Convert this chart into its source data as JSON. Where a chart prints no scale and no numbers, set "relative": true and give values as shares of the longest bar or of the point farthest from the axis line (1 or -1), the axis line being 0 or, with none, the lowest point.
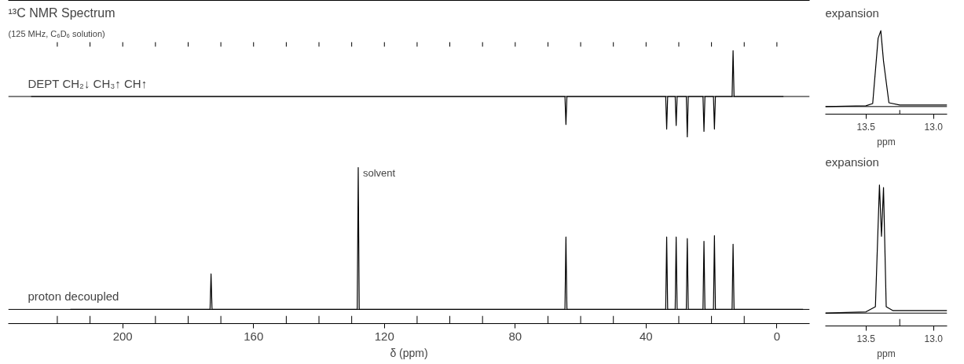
{
  "chart_data": [
    {
      "type": "line",
      "title": "¹³C NMR Spectrum",
      "subtitle": "(125 MHz, C₆D₆ solution)",
      "relative": true,
      "tick_labels": false,
      "annotations": [
        "DEPT  CH₂↓ CH₃↑ CH↑"
      ],
      "xlim": [
        235,
        -10
      ],
      "xticks": [
        {
          "value": 220,
          "label": null
        },
        {
          "value": 210,
          "label": null
        },
        {
          "value": 200,
          "label": null
        },
        {
          "value": 190,
          "label": null
        },
        {
          "value": 180,
          "label": null
        },
        {
          "value": 170,
          "label": null
        },
        {
          "value": 160,
          "label": null
        },
        {
          "value": 150,
          "label": null
        },
        {
          "value": 140,
          "label": null
        },
        {
          "value": 130,
          "label": null
        },
        {
          "value": 120,
          "label": null
        },
        {
          "value": 110,
          "label": null
        },
        {
          "value": 100,
          "label": null
        },
        {
          "value": 90,
          "label": null
        },
        {
          "value": 80,
          "label": null
        },
        {
          "value": 70,
          "label": null
        },
        {
          "value": 60,
          "label": null
        },
        {
          "value": 50,
          "label": null
        },
        {
          "value": 40,
          "label": null
        },
        {
          "value": 30,
          "label": null
        },
        {
          "value": 20,
          "label": null
        },
        {
          "value": 10,
          "label": null
        },
        {
          "value": 0,
          "label": null
        }
      ],
      "series": [
        {
          "color": "#000000",
          "x": [
            228,
            64.8,
            64.5,
            64.2,
            34.0,
            33.7,
            33.4,
            31.1,
            30.8,
            30.5,
            27.7,
            27.4,
            27.1,
            22.6,
            22.3,
            22.0,
            19.4,
            19.1,
            18.8,
            13.7,
            13.4,
            13.1,
            -2
          ],
          "values": [
            0,
            0,
            -0.61,
            0,
            0,
            -0.71,
            0,
            0,
            -0.63,
            0,
            0,
            -0.88,
            0,
            0,
            -0.76,
            0,
            0,
            -0.71,
            0,
            0,
            1,
            0,
            0
          ]
        }
      ]
    },
    {
      "type": "line",
      "xlabel": "δ (ppm)",
      "relative": true,
      "annotations": [
        "proton decoupled",
        {
          "text": "solvent",
          "x": 128,
          "y": 1
        }
      ],
      "xlim": [
        235,
        -10
      ],
      "xticks": [
        {
          "value": 220,
          "label": null
        },
        {
          "value": 210,
          "label": null
        },
        200,
        {
          "value": 190,
          "label": null
        },
        {
          "value": 180,
          "label": null
        },
        {
          "value": 170,
          "label": null
        },
        160,
        {
          "value": 150,
          "label": null
        },
        {
          "value": 140,
          "label": null
        },
        {
          "value": 130,
          "label": null
        },
        120,
        {
          "value": 110,
          "label": null
        },
        {
          "value": 100,
          "label": null
        },
        {
          "value": 90,
          "label": null
        },
        80,
        {
          "value": 70,
          "label": null
        },
        {
          "value": 60,
          "label": null
        },
        {
          "value": 50,
          "label": null
        },
        40,
        {
          "value": 30,
          "label": null
        },
        {
          "value": 20,
          "label": null
        },
        {
          "value": 10,
          "label": null
        },
        0
      ],
      "series": [
        {
          "color": "#000000",
          "x": [
            216,
            173.3,
            173,
            172.7,
            128.3,
            128,
            127.7,
            64.8,
            64.5,
            64.2,
            34.0,
            33.7,
            33.4,
            31.1,
            30.8,
            30.5,
            27.7,
            27.4,
            27.1,
            22.6,
            22.3,
            22.0,
            19.4,
            19.1,
            18.8,
            13.7,
            13.4,
            13.1,
            -8
          ],
          "values": [
            0,
            0,
            0.25,
            0,
            0,
            1,
            0,
            0,
            0.51,
            0,
            0,
            0.51,
            0,
            0,
            0.51,
            0,
            0,
            0.5,
            0,
            0,
            0.48,
            0,
            0,
            0.52,
            0,
            0,
            0.46,
            0,
            0
          ]
        }
      ]
    },
    {
      "type": "line",
      "title": "expansion",
      "xlabel": "ppm",
      "relative": true,
      "xlim": [
        13.8,
        12.9
      ],
      "xticks": [
        13.5,
        {
          "value": 13.25,
          "label": null
        },
        {
          "value": 13.0,
          "label": "13.0"
        }
      ],
      "series": [
        {
          "color": "#000000",
          "x": [
            13.8,
            13.5,
            13.45,
            13.41,
            13.39,
            13.37,
            13.33,
            13.25,
            12.9
          ],
          "values": [
            0,
            0.01,
            0.04,
            0.9,
            1,
            0.6,
            0.05,
            0.02,
            0.02
          ]
        }
      ]
    },
    {
      "type": "line",
      "title": "expansion",
      "xlabel": "ppm",
      "relative": true,
      "xlim": [
        13.8,
        12.9
      ],
      "xticks": [
        13.5,
        {
          "value": 13.25,
          "label": null
        },
        {
          "value": 13.0,
          "label": "13.0"
        }
      ],
      "series": [
        {
          "color": "#000000",
          "x": [
            13.8,
            13.5,
            13.43,
            13.4,
            13.385,
            13.37,
            13.35,
            13.3,
            12.9
          ],
          "values": [
            0,
            0.01,
            0.05,
            1,
            0.6,
            0.98,
            0.05,
            0.02,
            0.02
          ]
        }
      ]
    }
  ]
}
